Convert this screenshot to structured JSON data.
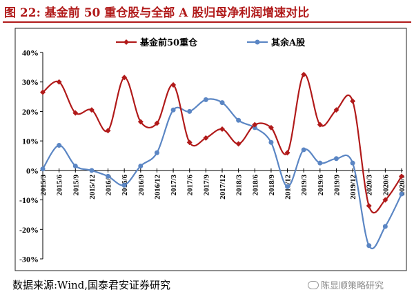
{
  "title": "图 22:  基金前 50 重仓股与全部 A 股归母净利润增速对比",
  "source": "数据来源:Wind,国泰君安证券研究",
  "watermark": "陈显顺策略研究",
  "colors": {
    "title": "#b11a1a",
    "series1": "#b11a1a",
    "series2": "#5b86c4"
  },
  "chart_data": {
    "type": "line",
    "title": "",
    "xlabel": "",
    "ylabel": "",
    "ylim": [
      -30,
      40
    ],
    "yticks": [
      40,
      30,
      20,
      10,
      0,
      -10,
      -20,
      -30
    ],
    "ytick_labels": [
      "40%",
      "30%",
      "20%",
      "10%",
      "0%",
      "-10%",
      "-20%",
      "-30%"
    ],
    "x": [
      "2015/3",
      "2015/6",
      "2015/9",
      "2015/12",
      "2016/3",
      "2016/6",
      "2016/9",
      "2016/12",
      "2017/3",
      "2017/6",
      "2017/9",
      "2017/12",
      "2018/3",
      "2018/6",
      "2018/9",
      "2018/12",
      "2019/3",
      "2019/6",
      "2019/9",
      "2019/12",
      "2020/3",
      "2020/6",
      "2020/9"
    ],
    "grid": false,
    "legend_position": "top",
    "series": [
      {
        "name": "基金前50重仓",
        "color": "#b11a1a",
        "marker": "diamond",
        "values": [
          26.5,
          30.0,
          19.5,
          20.5,
          13.5,
          31.5,
          16.5,
          16.0,
          29.0,
          9.5,
          11.0,
          14.0,
          9.0,
          15.5,
          14.5,
          6.0,
          32.5,
          15.5,
          20.5,
          23.5,
          -12.0,
          -10.0,
          -2.0
        ]
      },
      {
        "name": "其余A股",
        "color": "#5b86c4",
        "marker": "circle",
        "values": [
          0.5,
          8.5,
          1.5,
          0.0,
          -2.0,
          -5.0,
          1.5,
          6.0,
          20.5,
          20.0,
          24.0,
          23.0,
          17.0,
          14.5,
          9.5,
          -5.5,
          7.0,
          2.5,
          4.0,
          2.5,
          -25.5,
          -19.0,
          -8.0
        ]
      }
    ]
  }
}
